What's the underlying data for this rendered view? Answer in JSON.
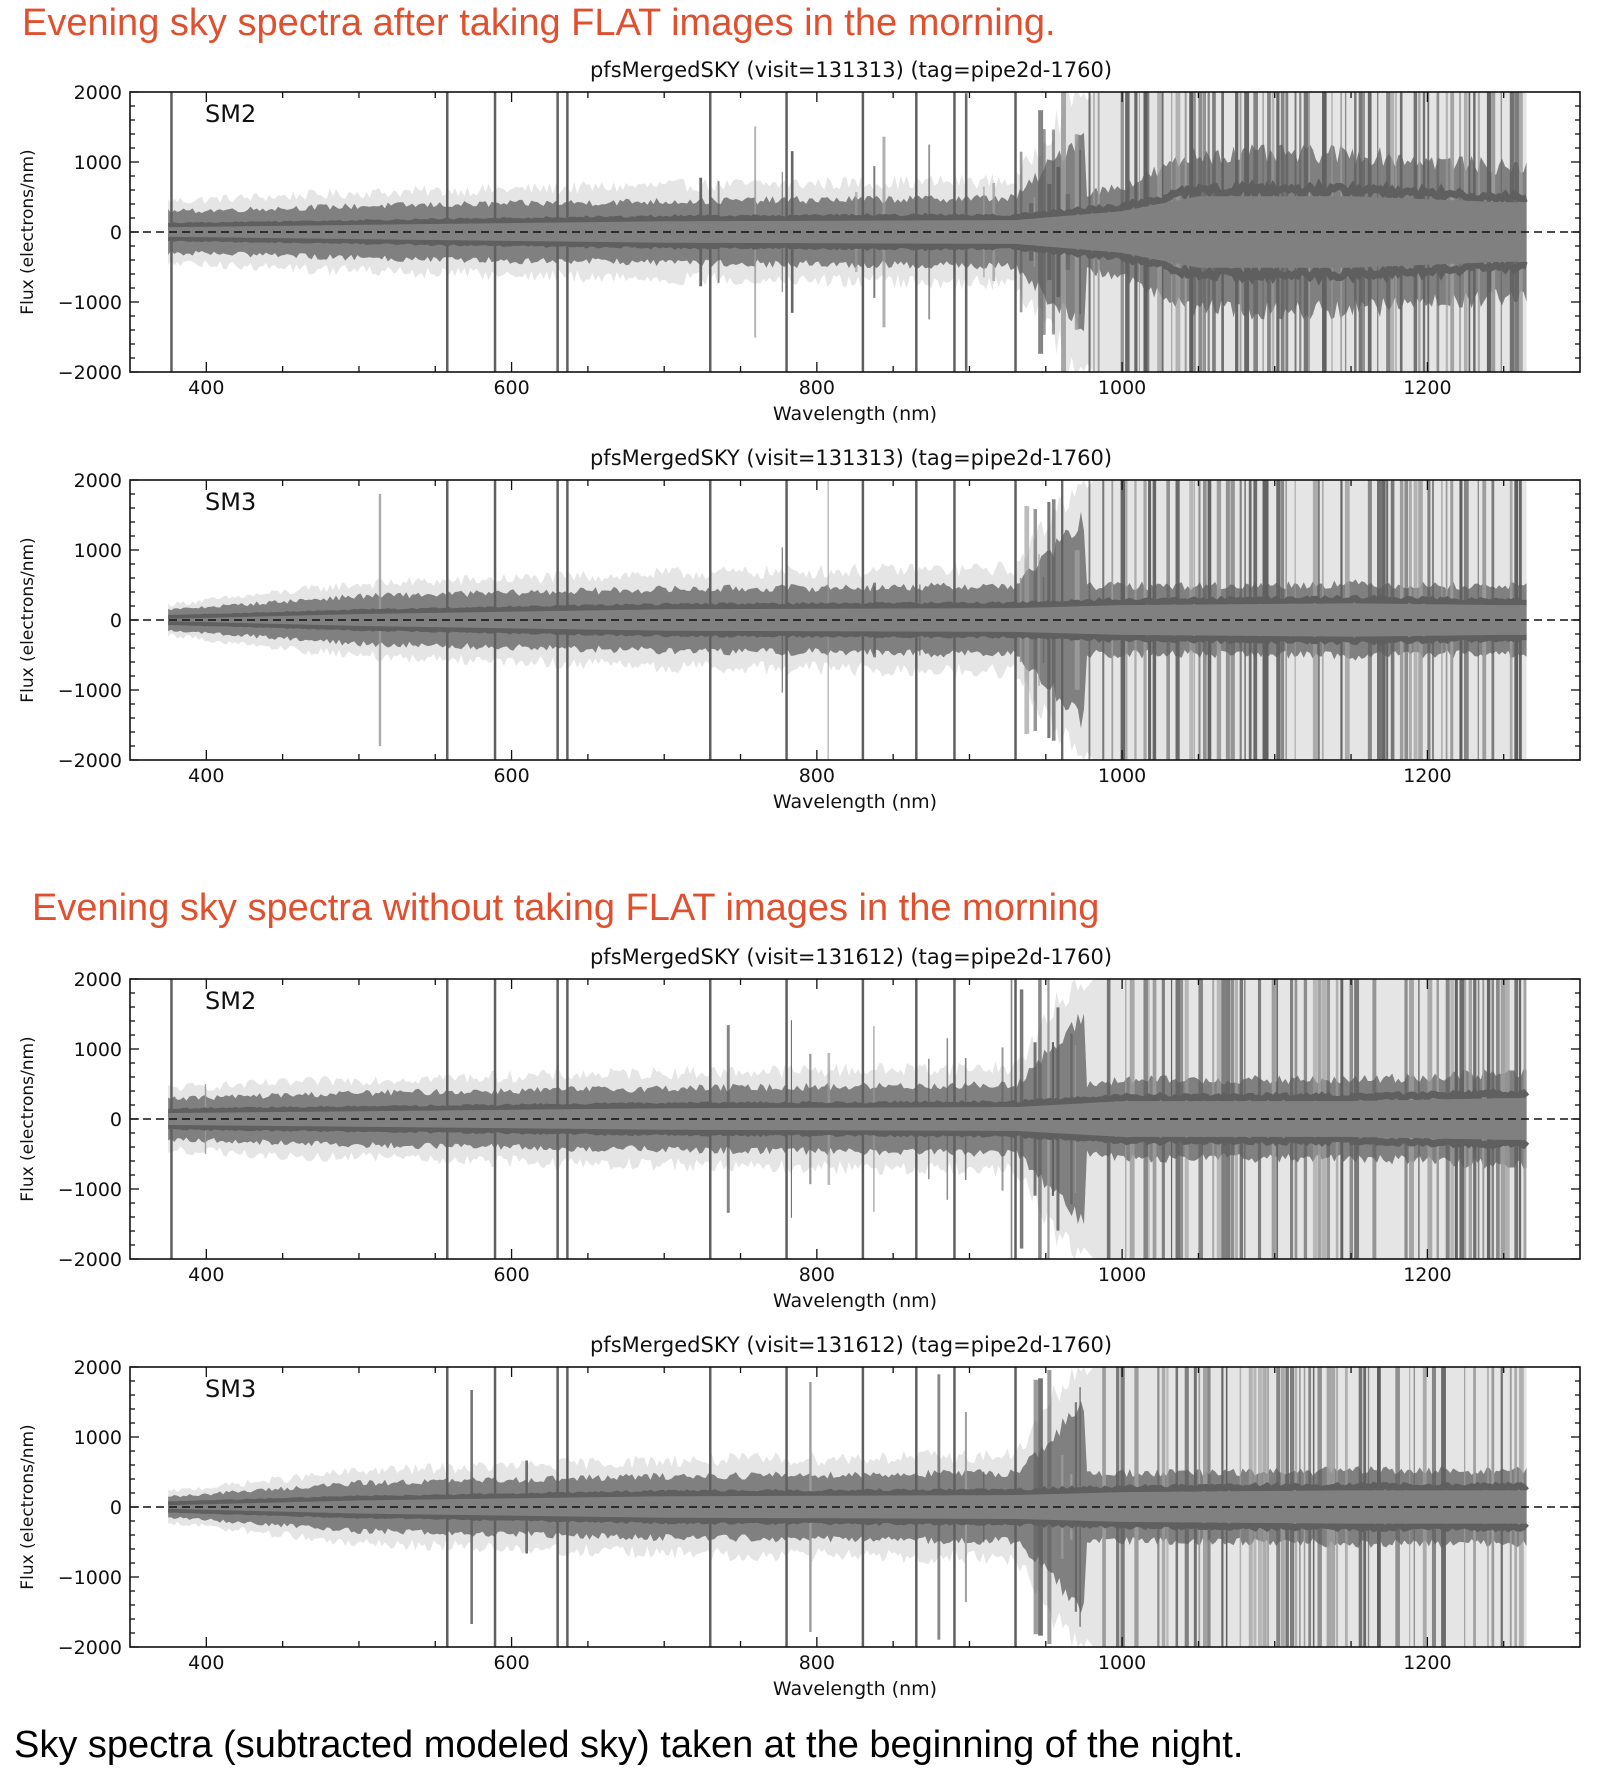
{
  "headings": {
    "top": "Evening sky spectra after taking FLAT images in the morning.",
    "middle": "Evening sky spectra without taking FLAT images in the morning",
    "bottom_caption": "Sky spectra (subtracted modeled sky) taken at the beginning of the night."
  },
  "colors": {
    "heading": "#e0502f",
    "dark_band": "#5f5f5f",
    "mid_band": "#808080",
    "light_band": "#cfcfcf",
    "zero_line": "#111111"
  },
  "chart_data": [
    {
      "type": "area",
      "title": "pfsMergedSKY (visit=131313) (tag=pipe2d-1760)",
      "label": "SM2",
      "group": "after FLAT",
      "xlabel": "Wavelength (nm)",
      "ylabel": "Flux (electrons/nm)",
      "xlim": [
        350,
        1300
      ],
      "ylim": [
        -2000,
        2000
      ],
      "xticks": [
        400,
        600,
        800,
        1000,
        1200
      ],
      "yticks": [
        -2000,
        -1000,
        0,
        1000,
        2000
      ],
      "ytick_labels": [
        "−2000",
        "−1000",
        "0",
        "1000",
        "2000"
      ],
      "zero_line": "dashed at 0",
      "data_range_nm": [
        375,
        1265
      ],
      "envelope_inner_abs": {
        "x": [
          375,
          500,
          700,
          930,
          1000,
          1050,
          1150,
          1250
        ],
        "y": [
          80,
          120,
          180,
          200,
          350,
          600,
          600,
          500
        ]
      },
      "envelope_outer_abs": {
        "x": [
          375,
          500,
          700,
          930,
          1000,
          1050,
          1150,
          1250
        ],
        "y": [
          300,
          380,
          450,
          500,
          2000,
          2000,
          2000,
          2000
        ]
      },
      "strong_lines_nm": [
        377,
        557.7,
        589,
        630,
        636.4,
        730,
        780,
        830,
        865,
        890,
        930
      ]
    },
    {
      "type": "area",
      "title": "pfsMergedSKY (visit=131313) (tag=pipe2d-1760)",
      "label": "SM3",
      "group": "after FLAT",
      "xlabel": "Wavelength (nm)",
      "ylabel": "Flux (electrons/nm)",
      "xlim": [
        350,
        1300
      ],
      "ylim": [
        -2000,
        2000
      ],
      "xticks": [
        400,
        600,
        800,
        1000,
        1200
      ],
      "yticks": [
        -2000,
        -1000,
        0,
        1000,
        2000
      ],
      "ytick_labels": [
        "−2000",
        "−1000",
        "0",
        "1000",
        "2000"
      ],
      "zero_line": "dashed at 0",
      "data_range_nm": [
        375,
        1265
      ],
      "envelope_inner_abs": {
        "x": [
          375,
          500,
          700,
          930,
          1000,
          1150,
          1250
        ],
        "y": [
          20,
          100,
          180,
          200,
          250,
          280,
          250
        ]
      },
      "envelope_outer_abs": {
        "x": [
          375,
          500,
          700,
          930,
          1000,
          1150,
          1250
        ],
        "y": [
          150,
          350,
          450,
          500,
          2000,
          2000,
          2000
        ]
      },
      "strong_lines_nm": [
        557.7,
        589,
        630,
        636.4,
        730,
        780,
        830,
        865,
        890,
        930
      ]
    },
    {
      "type": "area",
      "title": "pfsMergedSKY (visit=131612) (tag=pipe2d-1760)",
      "label": "SM2",
      "group": "without FLAT",
      "xlabel": "Wavelength (nm)",
      "ylabel": "Flux (electrons/nm)",
      "xlim": [
        350,
        1300
      ],
      "ylim": [
        -2000,
        2000
      ],
      "xticks": [
        400,
        600,
        800,
        1000,
        1200
      ],
      "yticks": [
        -2000,
        -1000,
        0,
        1000,
        2000
      ],
      "ytick_labels": [
        "−2000",
        "−1000",
        "0",
        "1000",
        "2000"
      ],
      "zero_line": "dashed at 0",
      "data_range_nm": [
        375,
        1265
      ],
      "envelope_inner_abs": {
        "x": [
          375,
          500,
          700,
          930,
          1000,
          1150,
          1250
        ],
        "y": [
          100,
          130,
          180,
          200,
          300,
          300,
          350
        ]
      },
      "envelope_outer_abs": {
        "x": [
          375,
          500,
          700,
          930,
          1000,
          1150,
          1250
        ],
        "y": [
          300,
          380,
          450,
          500,
          2000,
          2000,
          2000
        ]
      },
      "strong_lines_nm": [
        377,
        557.7,
        589,
        630,
        636.4,
        730,
        780,
        830,
        865,
        890,
        930
      ]
    },
    {
      "type": "area",
      "title": "pfsMergedSKY (visit=131612) (tag=pipe2d-1760)",
      "label": "SM3",
      "group": "without FLAT",
      "xlabel": "Wavelength (nm)",
      "ylabel": "Flux (electrons/nm)",
      "xlim": [
        350,
        1300
      ],
      "ylim": [
        -2000,
        2000
      ],
      "xticks": [
        400,
        600,
        800,
        1000,
        1200
      ],
      "yticks": [
        -2000,
        -1000,
        0,
        1000,
        2000
      ],
      "ytick_labels": [
        "−2000",
        "−1000",
        "0",
        "1000",
        "2000"
      ],
      "zero_line": "dashed at 0",
      "data_range_nm": [
        375,
        1265
      ],
      "envelope_inner_abs": {
        "x": [
          375,
          500,
          700,
          930,
          1000,
          1150,
          1250
        ],
        "y": [
          30,
          110,
          180,
          200,
          250,
          280,
          280
        ]
      },
      "envelope_outer_abs": {
        "x": [
          375,
          500,
          700,
          930,
          1000,
          1150,
          1250
        ],
        "y": [
          150,
          350,
          450,
          500,
          2000,
          2000,
          2000
        ]
      },
      "strong_lines_nm": [
        557.7,
        589,
        630,
        636.4,
        730,
        780,
        830,
        865,
        890,
        930
      ]
    }
  ]
}
